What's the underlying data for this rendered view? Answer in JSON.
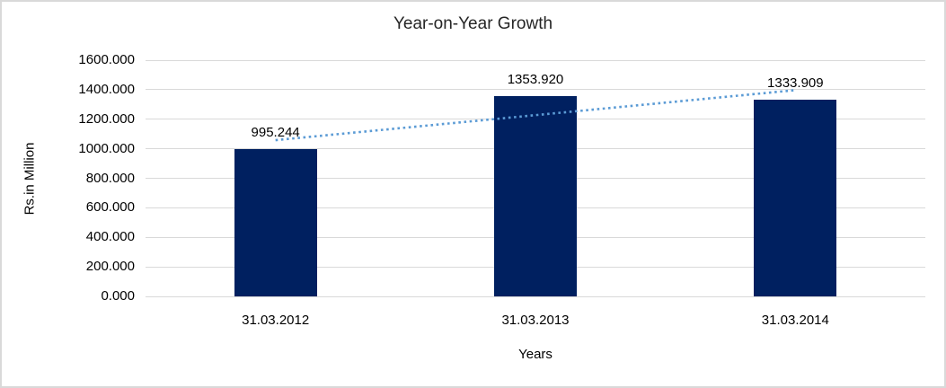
{
  "chart": {
    "title": "Year-on-Year Growth",
    "y_axis_title": "Rs.in Million",
    "x_axis_title": "Years"
  },
  "chart_data": {
    "type": "bar",
    "title": "Year-on-Year Growth",
    "xlabel": "Years",
    "ylabel": "Rs.in Million",
    "categories": [
      "31.03.2012",
      "31.03.2013",
      "31.03.2014"
    ],
    "values": [
      995.244,
      1353.92,
      1333.909
    ],
    "value_labels": [
      "995.244",
      "1353.920",
      "1333.909"
    ],
    "y_ticks": [
      "0.000",
      "200.000",
      "400.000",
      "600.000",
      "800.000",
      "1000.000",
      "1200.000",
      "1400.000",
      "1600.000"
    ],
    "ylim": [
      0,
      1600
    ],
    "grid": "horizontal",
    "legend": "none",
    "trendline": {
      "type": "linear",
      "style": "dotted",
      "start_value": 1058.4,
      "end_value": 1397.0
    },
    "colors": {
      "bar": "#002060",
      "trendline": "#5B9BD5",
      "gridline": "#D9D9D9",
      "frame_border": "#D9D9D9",
      "text": "#000000"
    }
  }
}
